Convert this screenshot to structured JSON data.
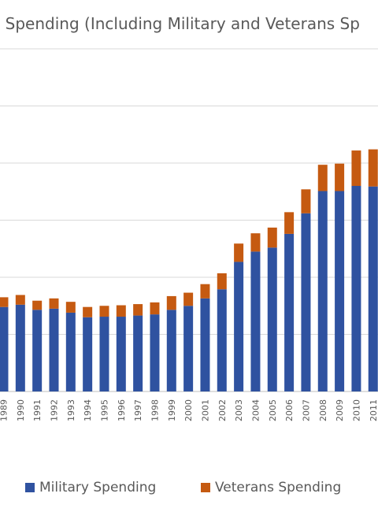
{
  "chart_data": {
    "type": "bar",
    "stacked": true,
    "title": "e Spending (Including Military and Veterans Sp",
    "xlabel": "",
    "ylabel": "",
    "categories": [
      "1989",
      "1990",
      "1991",
      "1992",
      "1993",
      "1994",
      "1995",
      "1996",
      "1997",
      "1998",
      "1999",
      "2000",
      "2001",
      "2002",
      "2003",
      "2004",
      "2005",
      "2006",
      "2007",
      "2008",
      "2009",
      "2010",
      "2011"
    ],
    "series": [
      {
        "name": "Military Spending",
        "color": "#2F52A0",
        "values": [
          148,
          152,
          143,
          145,
          138,
          130,
          131,
          131,
          133,
          135,
          143,
          150,
          163,
          179,
          227,
          245,
          252,
          276,
          312,
          351,
          351,
          360,
          359
        ]
      },
      {
        "name": "Veterans Spending",
        "color": "#C55A11",
        "values": [
          17,
          17,
          16,
          18,
          19,
          18,
          19,
          20,
          20,
          21,
          24,
          23,
          25,
          28,
          32,
          32,
          35,
          38,
          42,
          46,
          48,
          62,
          65
        ]
      }
    ],
    "ylim": [
      0,
      600
    ],
    "grid": true,
    "legend": "bottom"
  }
}
